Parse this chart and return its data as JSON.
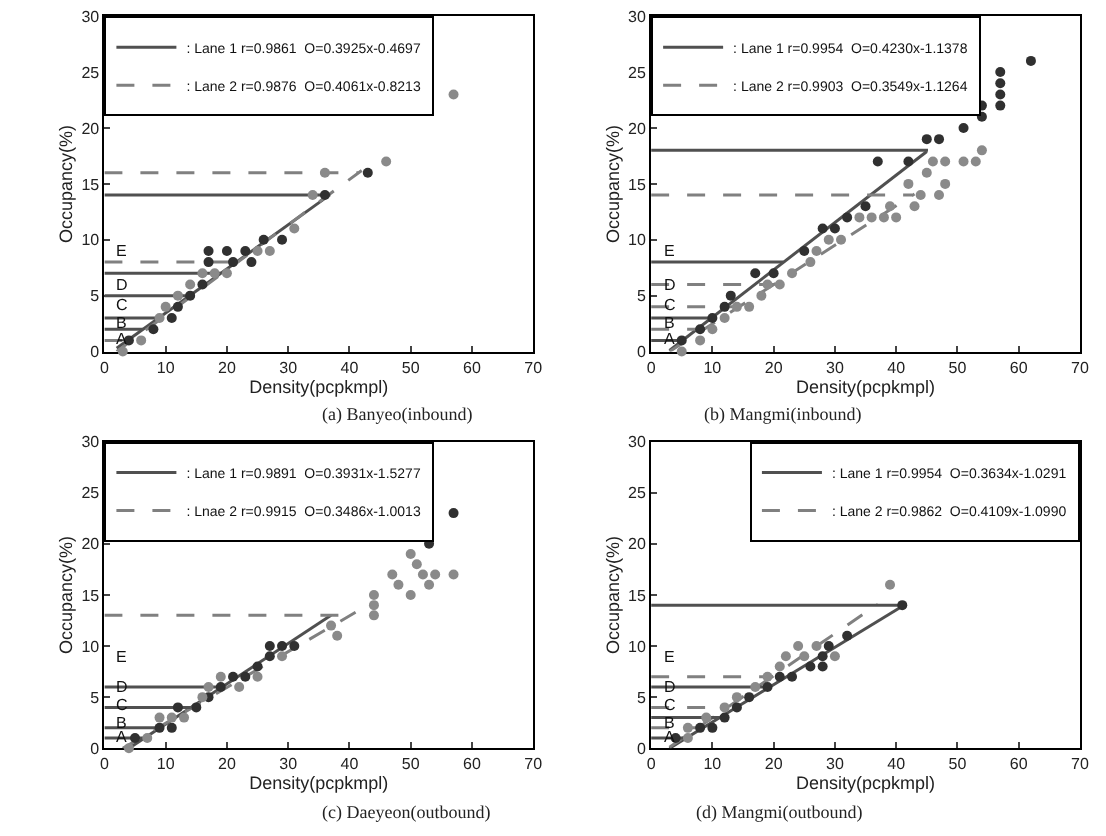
{
  "chart_data": [
    {
      "type": "scatter",
      "title": "(a) Banyeo(inbound)",
      "xlabel": "Density(pcpkmpl)",
      "ylabel": "Occupancy(%)",
      "xlim": [
        0,
        70
      ],
      "xticks": [
        0,
        10,
        20,
        30,
        40,
        50,
        60,
        70
      ],
      "ylim": [
        0,
        30
      ],
      "yticks": [
        0,
        5,
        10,
        15,
        20,
        25,
        30
      ],
      "legend": "top left",
      "series": [
        {
          "type": "scatter",
          "marker": "circle",
          "color": "#303030",
          "x": [
            4,
            8,
            11,
            12,
            14,
            16,
            17,
            17,
            20,
            21,
            23,
            24,
            26,
            29,
            36,
            43
          ],
          "values": [
            1,
            2,
            3,
            4,
            5,
            6,
            8,
            9,
            9,
            8,
            9,
            8,
            10,
            10,
            14,
            16
          ]
        },
        {
          "type": "scatter",
          "marker": "circle",
          "color": "#8a8a8a",
          "x": [
            3,
            6,
            9,
            10,
            12,
            14,
            16,
            18,
            20,
            25,
            27,
            31,
            34,
            36,
            46,
            57
          ],
          "values": [
            0,
            1,
            3,
            4,
            5,
            6,
            7,
            7,
            7,
            9,
            9,
            11,
            14,
            16,
            17,
            23
          ]
        },
        {
          "type": "line",
          "name": ": Lane 1 r=0.9861  O=0.3925x-0.4697",
          "color": "#505050",
          "line_style": "solid",
          "x": [
            2,
            36
          ],
          "values": [
            0.3,
            13.7
          ]
        },
        {
          "type": "line",
          "name": ": Lane 2 r=0.9876  O=0.4061x-0.8213",
          "color": "#808080",
          "line_style": "dashed",
          "x": [
            2,
            42
          ],
          "values": [
            0,
            16.2
          ]
        },
        {
          "type": "line",
          "color": "#505050",
          "line_style": "solid",
          "x": [
            0,
            6.3
          ],
          "values": [
            2,
            2
          ]
        },
        {
          "type": "line",
          "color": "#505050",
          "line_style": "solid",
          "x": [
            0,
            8.8
          ],
          "values": [
            3,
            3
          ]
        },
        {
          "type": "line",
          "color": "#505050",
          "line_style": "solid",
          "x": [
            0,
            13.9
          ],
          "values": [
            5,
            5
          ]
        },
        {
          "type": "line",
          "color": "#505050",
          "line_style": "solid",
          "x": [
            0,
            19
          ],
          "values": [
            7,
            7
          ]
        },
        {
          "type": "line",
          "color": "#505050",
          "line_style": "solid",
          "x": [
            0,
            36.9
          ],
          "values": [
            14,
            14
          ]
        },
        {
          "type": "line",
          "color": "#808080",
          "line_style": "dashed",
          "x": [
            0,
            4.5
          ],
          "values": [
            1,
            1
          ]
        },
        {
          "type": "line",
          "color": "#808080",
          "line_style": "dashed",
          "x": [
            0,
            21.7
          ],
          "values": [
            8,
            8
          ]
        },
        {
          "type": "line",
          "color": "#808080",
          "line_style": "dashed",
          "x": [
            0,
            41.4
          ],
          "values": [
            16,
            16
          ]
        }
      ],
      "annotations": [
        "A",
        "B",
        "C",
        "D",
        "E"
      ]
    },
    {
      "type": "scatter",
      "title": "(b) Mangmi(inbound)",
      "xlabel": "Density(pcpkmpl)",
      "ylabel": "Occupancy(%)",
      "xlim": [
        0,
        70
      ],
      "xticks": [
        0,
        10,
        20,
        30,
        40,
        50,
        60,
        70
      ],
      "ylim": [
        0,
        30
      ],
      "yticks": [
        0,
        5,
        10,
        15,
        20,
        25,
        30
      ],
      "legend": "top left",
      "series": [
        {
          "type": "scatter",
          "marker": "circle",
          "color": "#303030",
          "x": [
            5,
            8,
            10,
            12,
            13,
            17,
            20,
            25,
            28,
            30,
            32,
            35,
            37,
            42,
            45,
            47,
            51,
            54,
            54,
            57,
            57,
            57,
            57,
            62
          ],
          "values": [
            1,
            2,
            3,
            4,
            5,
            7,
            7,
            9,
            11,
            11,
            12,
            13,
            17,
            17,
            19,
            19,
            20,
            22,
            21,
            22,
            23,
            24,
            25,
            26
          ]
        },
        {
          "type": "scatter",
          "marker": "circle",
          "color": "#8a8a8a",
          "x": [
            5,
            8,
            10,
            12,
            14,
            16,
            18,
            19,
            21,
            23,
            26,
            27,
            29,
            31,
            34,
            36,
            38,
            39,
            40,
            42,
            43,
            44,
            45,
            46,
            47,
            48,
            48,
            51,
            53,
            54
          ],
          "values": [
            0,
            1,
            2,
            3,
            4,
            4,
            5,
            6,
            6,
            7,
            8,
            9,
            10,
            10,
            12,
            12,
            12,
            13,
            12,
            15,
            13,
            14,
            16,
            17,
            14,
            15,
            17,
            17,
            17,
            18
          ]
        },
        {
          "type": "line",
          "name": ": Lane 1 r=0.9954  O=0.4230x-1.1378",
          "color": "#505050",
          "line_style": "solid",
          "x": [
            3,
            45
          ],
          "values": [
            0.1,
            17.9
          ]
        },
        {
          "type": "line",
          "name": ": Lane 2 r=0.9903  O=0.3549x-1.1264",
          "color": "#808080",
          "line_style": "dashed",
          "x": [
            3,
            43
          ],
          "values": [
            0,
            14.1
          ]
        },
        {
          "type": "line",
          "color": "#505050",
          "line_style": "solid",
          "x": [
            0,
            5.1
          ],
          "values": [
            1,
            1
          ]
        },
        {
          "type": "line",
          "color": "#505050",
          "line_style": "solid",
          "x": [
            0,
            9.8
          ],
          "values": [
            3,
            3
          ]
        },
        {
          "type": "line",
          "color": "#505050",
          "line_style": "solid",
          "x": [
            0,
            21.6
          ],
          "values": [
            8,
            8
          ]
        },
        {
          "type": "line",
          "color": "#505050",
          "line_style": "solid",
          "x": [
            0,
            45.2
          ],
          "values": [
            18,
            18
          ]
        },
        {
          "type": "line",
          "color": "#808080",
          "line_style": "dashed",
          "x": [
            0,
            8.8
          ],
          "values": [
            2,
            2
          ]
        },
        {
          "type": "line",
          "color": "#808080",
          "line_style": "dashed",
          "x": [
            0,
            14.4
          ],
          "values": [
            4,
            4
          ]
        },
        {
          "type": "line",
          "color": "#808080",
          "line_style": "dashed",
          "x": [
            0,
            20.1
          ],
          "values": [
            6,
            6
          ]
        },
        {
          "type": "line",
          "color": "#808080",
          "line_style": "dashed",
          "x": [
            0,
            42.6
          ],
          "values": [
            14,
            14
          ]
        }
      ],
      "annotations": [
        "A",
        "B",
        "C",
        "D",
        "E"
      ]
    },
    {
      "type": "scatter",
      "title": "(c) Daeyeon(outbound)",
      "xlabel": "Density(pcpkmpl)",
      "ylabel": "Occupancy(%)",
      "xlim": [
        0,
        70
      ],
      "xticks": [
        0,
        10,
        20,
        30,
        40,
        50,
        60,
        70
      ],
      "ylim": [
        0,
        30
      ],
      "yticks": [
        0,
        5,
        10,
        15,
        20,
        25,
        30
      ],
      "legend": "top left",
      "series": [
        {
          "type": "scatter",
          "marker": "circle",
          "color": "#303030",
          "x": [
            5,
            9,
            11,
            12,
            15,
            17,
            19,
            21,
            23,
            25,
            27,
            27,
            29,
            31,
            53,
            57
          ],
          "values": [
            1,
            2,
            2,
            4,
            4,
            5,
            6,
            7,
            7,
            8,
            9,
            10,
            10,
            10,
            20,
            23
          ]
        },
        {
          "type": "scatter",
          "marker": "circle",
          "color": "#8a8a8a",
          "x": [
            4,
            7,
            9,
            11,
            13,
            16,
            17,
            19,
            22,
            25,
            29,
            37,
            38,
            44,
            44,
            44,
            47,
            48,
            50,
            50,
            51,
            52,
            53,
            54,
            57
          ],
          "values": [
            0,
            1,
            3,
            3,
            3,
            5,
            6,
            7,
            6,
            7,
            9,
            12,
            11,
            13,
            14,
            15,
            17,
            16,
            15,
            19,
            18,
            17,
            16,
            17,
            17
          ]
        },
        {
          "type": "line",
          "name": ": Lane 1 r=0.9891  O=0.3931x-1.5277",
          "color": "#505050",
          "line_style": "solid",
          "x": [
            4,
            37
          ],
          "values": [
            0,
            13
          ]
        },
        {
          "type": "line",
          "name": ": Lnae 2 r=0.9915  O=0.3486x-1.0013",
          "color": "#808080",
          "line_style": "dashed",
          "x": [
            3,
            41
          ],
          "values": [
            0,
            13.3
          ]
        },
        {
          "type": "line",
          "color": "#505050",
          "line_style": "solid",
          "x": [
            0,
            6.4
          ],
          "values": [
            1,
            1
          ]
        },
        {
          "type": "line",
          "color": "#505050",
          "line_style": "solid",
          "x": [
            0,
            9
          ],
          "values": [
            2,
            2
          ]
        },
        {
          "type": "line",
          "color": "#505050",
          "line_style": "solid",
          "x": [
            0,
            14.1
          ],
          "values": [
            4,
            4
          ]
        },
        {
          "type": "line",
          "color": "#505050",
          "line_style": "solid",
          "x": [
            0,
            19.2
          ],
          "values": [
            6,
            6
          ]
        },
        {
          "type": "line",
          "color": "#808080",
          "line_style": "dashed",
          "x": [
            0,
            40.2
          ],
          "values": [
            13,
            13
          ]
        }
      ],
      "annotations": [
        "A",
        "B",
        "C",
        "D",
        "E"
      ]
    },
    {
      "type": "scatter",
      "title": "(d) Mangmi(outbound)",
      "xlabel": "Density(pcpkmpl)",
      "ylabel": "Occupancy(%)",
      "xlim": [
        0,
        70
      ],
      "xticks": [
        0,
        10,
        20,
        30,
        40,
        50,
        60,
        70
      ],
      "ylim": [
        0,
        30
      ],
      "yticks": [
        0,
        5,
        10,
        15,
        20,
        25,
        30
      ],
      "legend": "top right",
      "series": [
        {
          "type": "scatter",
          "marker": "circle",
          "color": "#303030",
          "x": [
            4,
            8,
            10,
            12,
            14,
            16,
            19,
            21,
            23,
            26,
            28,
            28,
            29,
            32,
            41
          ],
          "values": [
            1,
            2,
            2,
            3,
            4,
            5,
            6,
            7,
            7,
            8,
            8,
            9,
            10,
            11,
            14
          ]
        },
        {
          "type": "scatter",
          "marker": "circle",
          "color": "#8a8a8a",
          "x": [
            6,
            6,
            9,
            12,
            14,
            17,
            19,
            21,
            22,
            24,
            25,
            27,
            30,
            39
          ],
          "values": [
            1,
            2,
            3,
            4,
            5,
            6,
            7,
            8,
            9,
            10,
            9,
            10,
            9,
            16
          ]
        },
        {
          "type": "line",
          "name": ": Lane 1 r=0.9954  O=0.3634x-1.0291",
          "color": "#505050",
          "line_style": "solid",
          "x": [
            3,
            41
          ],
          "values": [
            0,
            13.9
          ]
        },
        {
          "type": "line",
          "name": ": Lane 2 r=0.9862  O=0.4109x-1.0990",
          "color": "#808080",
          "line_style": "dashed",
          "x": [
            3,
            37
          ],
          "values": [
            0.1,
            14.1
          ]
        },
        {
          "type": "line",
          "color": "#505050",
          "line_style": "solid",
          "x": [
            0,
            5.6
          ],
          "values": [
            1,
            1
          ]
        },
        {
          "type": "line",
          "color": "#505050",
          "line_style": "solid",
          "x": [
            0,
            11.1
          ],
          "values": [
            3,
            3
          ]
        },
        {
          "type": "line",
          "color": "#505050",
          "line_style": "solid",
          "x": [
            0,
            19.3
          ],
          "values": [
            6,
            6
          ]
        },
        {
          "type": "line",
          "color": "#505050",
          "line_style": "solid",
          "x": [
            0,
            41.4
          ],
          "values": [
            14,
            14
          ]
        },
        {
          "type": "line",
          "color": "#808080",
          "line_style": "dashed",
          "x": [
            0,
            7.5
          ],
          "values": [
            2,
            2
          ]
        },
        {
          "type": "line",
          "color": "#808080",
          "line_style": "dashed",
          "x": [
            0,
            12.4
          ],
          "values": [
            4,
            4
          ]
        },
        {
          "type": "line",
          "color": "#808080",
          "line_style": "dashed",
          "x": [
            0,
            19.7
          ],
          "values": [
            7,
            7
          ]
        }
      ],
      "annotations": [
        "A",
        "B",
        "C",
        "D",
        "E"
      ]
    }
  ]
}
